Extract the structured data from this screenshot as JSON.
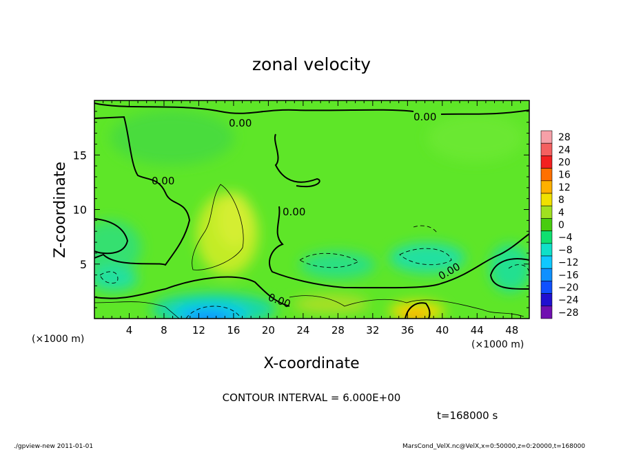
{
  "chart_data": {
    "type": "heatmap",
    "title": "zonal velocity",
    "xlabel": "X-coordinate",
    "ylabel": "Z-coordinate",
    "xlim": [
      0,
      50
    ],
    "ylim": [
      0,
      20
    ],
    "x_ticks": [
      4,
      8,
      12,
      16,
      20,
      24,
      28,
      32,
      36,
      40,
      44,
      48
    ],
    "y_ticks": [
      5,
      10,
      15
    ],
    "x_unit_label": "(×1000 m)",
    "y_unit_label": "(×1000 m)",
    "colorbar": {
      "levels": [
        28,
        24,
        20,
        16,
        12,
        8,
        4,
        0,
        -4,
        -8,
        -12,
        -16,
        -20,
        -24,
        -28
      ],
      "labels": [
        "28",
        "24",
        "20",
        "16",
        "12",
        "8",
        "4",
        "0",
        "−4",
        "−8",
        "−12",
        "−16",
        "−20",
        "−24",
        "−28"
      ],
      "colors": [
        "#f6a0a8",
        "#f46060",
        "#f32020",
        "#ff7000",
        "#ffb000",
        "#f0e000",
        "#a0e020",
        "#48cc10",
        "#10e070",
        "#10e0c8",
        "#10c8ff",
        "#1090ff",
        "#1050ff",
        "#2010d0",
        "#7010b0"
      ]
    },
    "contour_labels": [
      {
        "text": "0.00",
        "x": 19,
        "z": 18.6
      },
      {
        "text": "0.00",
        "x": 38.5,
        "z": 19.2
      },
      {
        "text": "0.00",
        "x": 8.3,
        "z": 12.4
      },
      {
        "text": "0.00",
        "x": 23.3,
        "z": 10.1
      },
      {
        "text": "0.00",
        "x": 41.2,
        "z": 4.3
      },
      {
        "text": "0.00",
        "x": 21.3,
        "z": 1.8
      }
    ],
    "contour_interval": "CONTOUR INTERVAL = 6.000E+00",
    "time_label": "t=168000 s"
  },
  "footer": {
    "left": "./gpview-new  2011-01-01",
    "right": "MarsCond_VelX.nc@VelX,x=0:50000,z=0:20000,t=168000"
  }
}
